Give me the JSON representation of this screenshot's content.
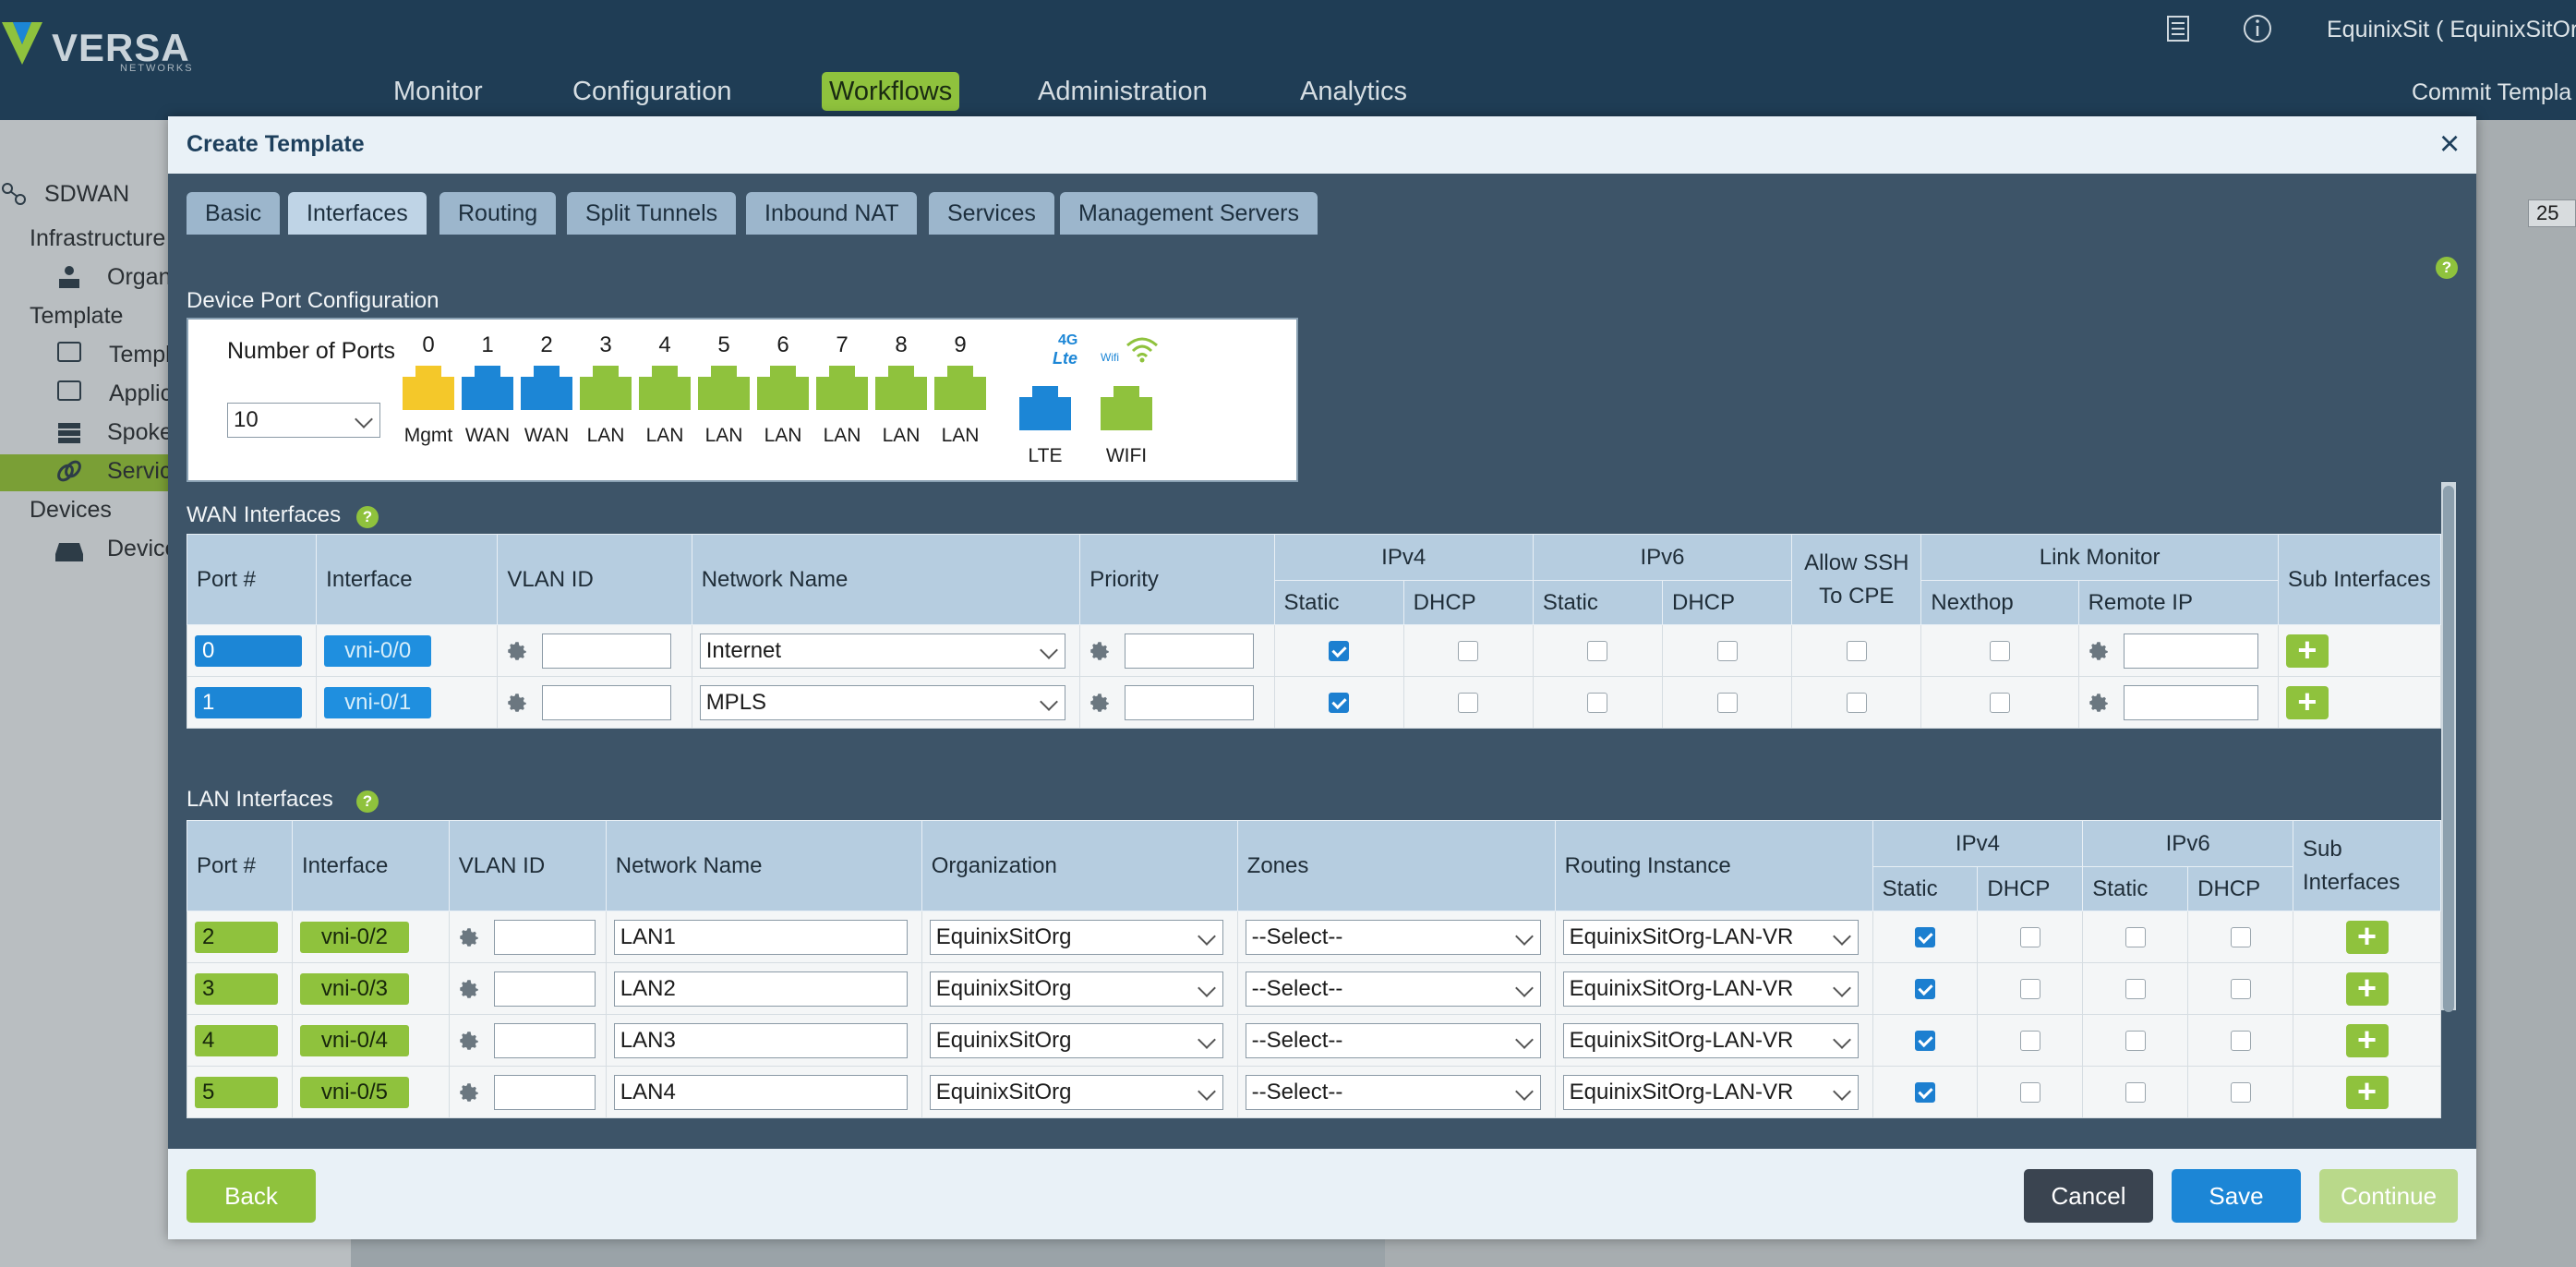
{
  "header": {
    "logo_text": "VERSA",
    "logo_sub": "NETWORKS",
    "user": "EquinixSit ( EquinixSitOrg",
    "commit": "Commit Templa",
    "nav": [
      {
        "label": "Monitor"
      },
      {
        "label": "Configuration"
      },
      {
        "label": "Workflows"
      },
      {
        "label": "Administration"
      },
      {
        "label": "Analytics"
      }
    ],
    "icons": [
      "document-list-icon",
      "info-icon"
    ]
  },
  "sidebar": {
    "root": "SDWAN",
    "items": [
      {
        "label": "Infrastructure"
      },
      {
        "label": "Organ"
      },
      {
        "label": "Template"
      },
      {
        "label": "Templ"
      },
      {
        "label": "Applic"
      },
      {
        "label": "Spoke"
      },
      {
        "label": "Servic"
      },
      {
        "label": "Devices"
      },
      {
        "label": "Device"
      }
    ]
  },
  "background": {
    "page_size": "25"
  },
  "modal": {
    "title": "Create Template",
    "close": "×",
    "tabs": [
      {
        "label": "Basic"
      },
      {
        "label": "Interfaces"
      },
      {
        "label": "Routing"
      },
      {
        "label": "Split Tunnels"
      },
      {
        "label": "Inbound NAT"
      },
      {
        "label": "Services"
      },
      {
        "label": "Management Servers"
      }
    ],
    "active_tab": "Interfaces",
    "help": "?",
    "device_port": {
      "section": "Device Port Configuration",
      "num_ports_label": "Number of Ports",
      "num_ports_value": "10",
      "ports": [
        {
          "num": "0",
          "label": "Mgmt",
          "color": "#f4c82a"
        },
        {
          "num": "1",
          "label": "WAN",
          "color": "#1c86d6"
        },
        {
          "num": "2",
          "label": "WAN",
          "color": "#1c86d6"
        },
        {
          "num": "3",
          "label": "LAN",
          "color": "#8fc23d"
        },
        {
          "num": "4",
          "label": "LAN",
          "color": "#8fc23d"
        },
        {
          "num": "5",
          "label": "LAN",
          "color": "#8fc23d"
        },
        {
          "num": "6",
          "label": "LAN",
          "color": "#8fc23d"
        },
        {
          "num": "7",
          "label": "LAN",
          "color": "#8fc23d"
        },
        {
          "num": "8",
          "label": "LAN",
          "color": "#8fc23d"
        },
        {
          "num": "9",
          "label": "LAN",
          "color": "#8fc23d"
        }
      ],
      "lte": {
        "badge": "4G",
        "badge2": "Lte",
        "label": "LTE",
        "color": "#1c86d6"
      },
      "wifi": {
        "badge": "Wifi",
        "label": "WIFI",
        "color": "#8fc23d"
      }
    },
    "wan": {
      "section": "WAN Interfaces",
      "headers": {
        "port": "Port #",
        "interface": "Interface",
        "vlan": "VLAN ID",
        "network": "Network Name",
        "priority": "Priority",
        "ipv4": "IPv4",
        "ipv6": "IPv6",
        "ssh": "Allow SSH To CPE",
        "link_monitor": "Link Monitor",
        "sub": "Sub Interfaces",
        "static": "Static",
        "dhcp": "DHCP",
        "nexthop": "Nexthop",
        "remote_ip": "Remote IP"
      },
      "rows": [
        {
          "port": "0",
          "interface": "vni-0/0",
          "vlan": "",
          "network": "Internet",
          "priority": "",
          "ipv4_static": true,
          "ipv4_dhcp": false,
          "ipv6_static": false,
          "ipv6_dhcp": false,
          "ssh": false,
          "nexthop": false,
          "remote_ip": "",
          "add": "+"
        },
        {
          "port": "1",
          "interface": "vni-0/1",
          "vlan": "",
          "network": "MPLS",
          "priority": "",
          "ipv4_static": true,
          "ipv4_dhcp": false,
          "ipv6_static": false,
          "ipv6_dhcp": false,
          "ssh": false,
          "nexthop": false,
          "remote_ip": "",
          "add": "+"
        }
      ]
    },
    "lan": {
      "section": "LAN Interfaces",
      "headers": {
        "port": "Port #",
        "interface": "Interface",
        "vlan": "VLAN ID",
        "network": "Network Name",
        "org": "Organization",
        "zones": "Zones",
        "routing": "Routing Instance",
        "ipv4": "IPv4",
        "ipv6": "IPv6",
        "sub": "Sub Interfaces",
        "static": "Static",
        "dhcp": "DHCP"
      },
      "rows": [
        {
          "port": "2",
          "interface": "vni-0/2",
          "vlan": "",
          "network": "LAN1",
          "org": "EquinixSitOrg",
          "zones": "--Select--",
          "routing": "EquinixSitOrg-LAN-VR",
          "ipv4_static": true,
          "ipv4_dhcp": false,
          "ipv6_static": false,
          "ipv6_dhcp": false,
          "add": "+"
        },
        {
          "port": "3",
          "interface": "vni-0/3",
          "vlan": "",
          "network": "LAN2",
          "org": "EquinixSitOrg",
          "zones": "--Select--",
          "routing": "EquinixSitOrg-LAN-VR",
          "ipv4_static": true,
          "ipv4_dhcp": false,
          "ipv6_static": false,
          "ipv6_dhcp": false,
          "add": "+"
        },
        {
          "port": "4",
          "interface": "vni-0/4",
          "vlan": "",
          "network": "LAN3",
          "org": "EquinixSitOrg",
          "zones": "--Select--",
          "routing": "EquinixSitOrg-LAN-VR",
          "ipv4_static": true,
          "ipv4_dhcp": false,
          "ipv6_static": false,
          "ipv6_dhcp": false,
          "add": "+"
        },
        {
          "port": "5",
          "interface": "vni-0/5",
          "vlan": "",
          "network": "LAN4",
          "org": "EquinixSitOrg",
          "zones": "--Select--",
          "routing": "EquinixSitOrg-LAN-VR",
          "ipv4_static": true,
          "ipv4_dhcp": false,
          "ipv6_static": false,
          "ipv6_dhcp": false,
          "add": "+"
        }
      ]
    },
    "footer": {
      "back": "Back",
      "cancel": "Cancel",
      "save": "Save",
      "continue": "Continue"
    }
  }
}
